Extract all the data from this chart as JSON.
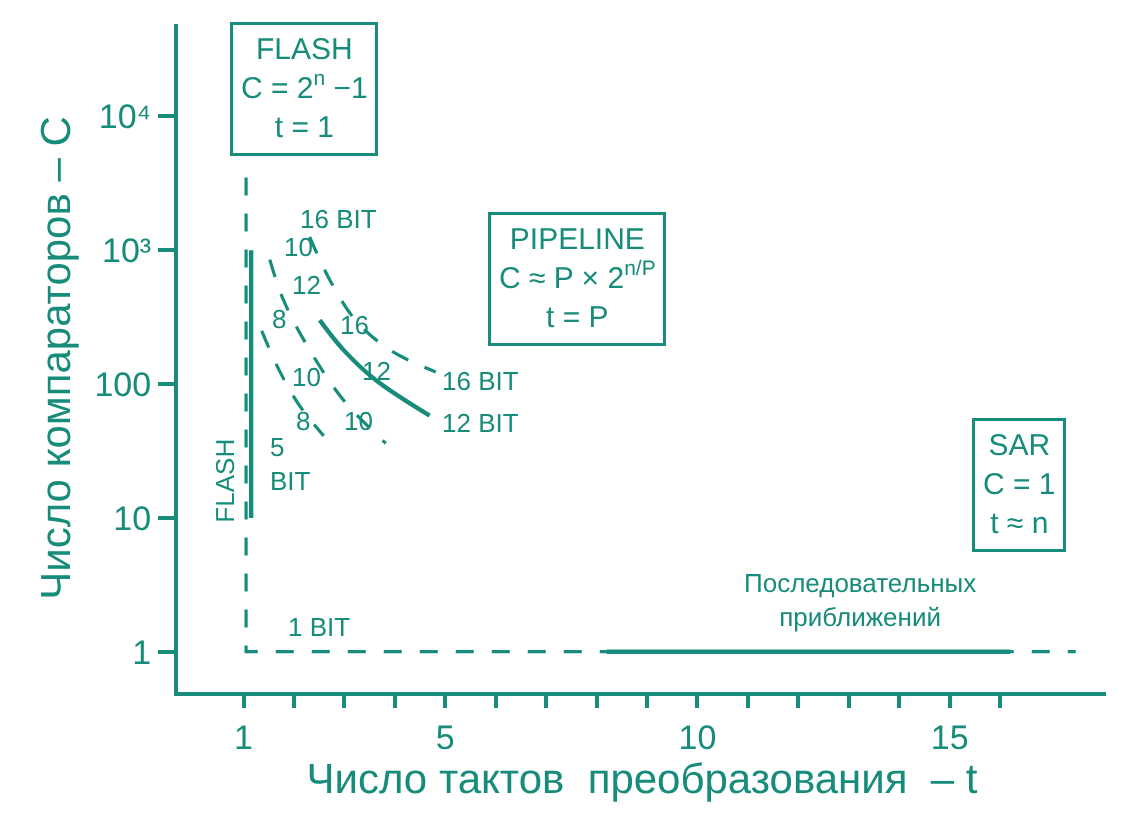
{
  "chart_data": {
    "type": "line",
    "xlabel": "Число тактов  преобразования  – t",
    "ylabel": "Число компараторов – C",
    "log": "y",
    "marker": "none",
    "xlim": [
      -0.3,
      18.1
    ],
    "ylim": [
      0.5,
      49000
    ],
    "xticks": [
      1,
      {
        "value": 2,
        "label": null
      },
      {
        "value": 3,
        "label": null
      },
      {
        "value": 4,
        "label": null
      },
      5,
      {
        "value": 6,
        "label": null
      },
      {
        "value": 7,
        "label": null
      },
      {
        "value": 8,
        "label": null
      },
      {
        "value": 9,
        "label": null
      },
      10,
      {
        "value": 11,
        "label": null
      },
      {
        "value": 12,
        "label": null
      },
      {
        "value": 13,
        "label": null
      },
      {
        "value": 14,
        "label": null
      },
      15,
      {
        "value": 16,
        "label": null
      }
    ],
    "yticks": [
      1,
      10,
      100,
      {
        "value": 1000,
        "label": "10³"
      },
      {
        "value": 10000,
        "label": "10⁴"
      }
    ],
    "series": [
      {
        "color": "#178c7a",
        "line_style": "dashed",
        "x": [
          1.05,
          1.05,
          17.5
        ],
        "values": [
          3500,
          1,
          1
        ]
      },
      {
        "color": "#178c7a",
        "line_style": "solid",
        "x": [
          1.15,
          1.15
        ],
        "values": [
          10,
          1000
        ]
      },
      {
        "color": "#178c7a",
        "line_style": "solid",
        "x": [
          8.2,
          16.2
        ],
        "values": [
          1,
          1
        ]
      },
      {
        "color": "#178c7a",
        "line_style": "dashed",
        "x": [
          2.31,
          2.71,
          3.22,
          3.9,
          4.81
        ],
        "values": [
          1260,
          600,
          300,
          180,
          123
        ]
      },
      {
        "color": "#178c7a",
        "line_style": "solid",
        "x": [
          2.51,
          2.98,
          3.62,
          4.69
        ],
        "values": [
          300,
          180,
          107,
          58
        ]
      },
      {
        "color": "#178c7a",
        "line_style": "dashed",
        "x": [
          1.52,
          1.79,
          2.31,
          2.98,
          3.82
        ],
        "values": [
          850,
          425,
          180,
          76,
          36
        ]
      },
      {
        "color": "#178c7a",
        "line_style": "dashed",
        "x": [
          1.36,
          1.71,
          2.11,
          2.59
        ],
        "values": [
          250,
          126,
          69,
          41
        ]
      }
    ],
    "annotations": [
      "FLASH\nC = 2$^{n}$ −1\nt = 1",
      "PIPELINE\nC ≈ P × 2$^{n/P}$\nt = P",
      "SAR\nC = 1\nt ≈ n",
      "16 BIT",
      "10",
      "12",
      "8",
      "16",
      "12",
      "10",
      "8",
      "10",
      "16 BIT",
      "12 BIT",
      "5\nBIT",
      "1 BIT",
      "FLASH",
      "Последовательных\nприближений"
    ]
  }
}
